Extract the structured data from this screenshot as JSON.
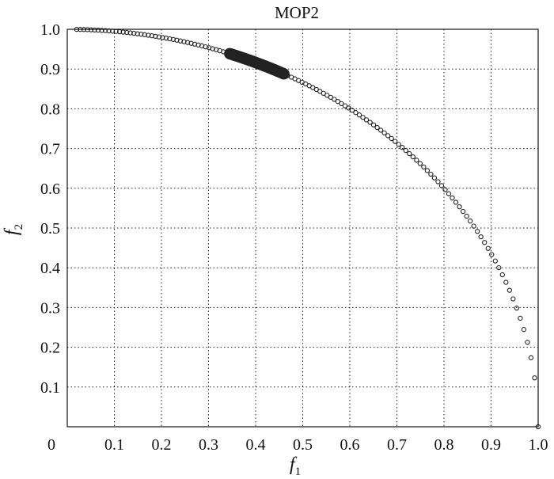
{
  "chart_data": {
    "type": "scatter",
    "title": "MOP2",
    "xlabel": "f",
    "xlabel_sub": "1",
    "ylabel": "f",
    "ylabel_sub": "2",
    "xlim": [
      0,
      1.0
    ],
    "ylim": [
      0,
      1.0
    ],
    "xticks": [
      "0",
      "0.1",
      "0.2",
      "0.3",
      "0.4",
      "0.5",
      "0.6",
      "0.7",
      "0.8",
      "0.9",
      "1.0"
    ],
    "yticks": [
      "0.1",
      "0.2",
      "0.3",
      "0.4",
      "0.5",
      "0.6",
      "0.7",
      "0.8",
      "0.9",
      "1.0"
    ],
    "grid": true,
    "front_curve": "f2 = sqrt(1 - f1^2)",
    "front": {
      "x_start": 0.02,
      "x_end": 1.0,
      "count": 130
    },
    "cluster": {
      "x_start": 0.345,
      "x_end": 0.46,
      "count": 70
    },
    "colors": {
      "marker": "#222222",
      "grid": "#222222"
    }
  }
}
